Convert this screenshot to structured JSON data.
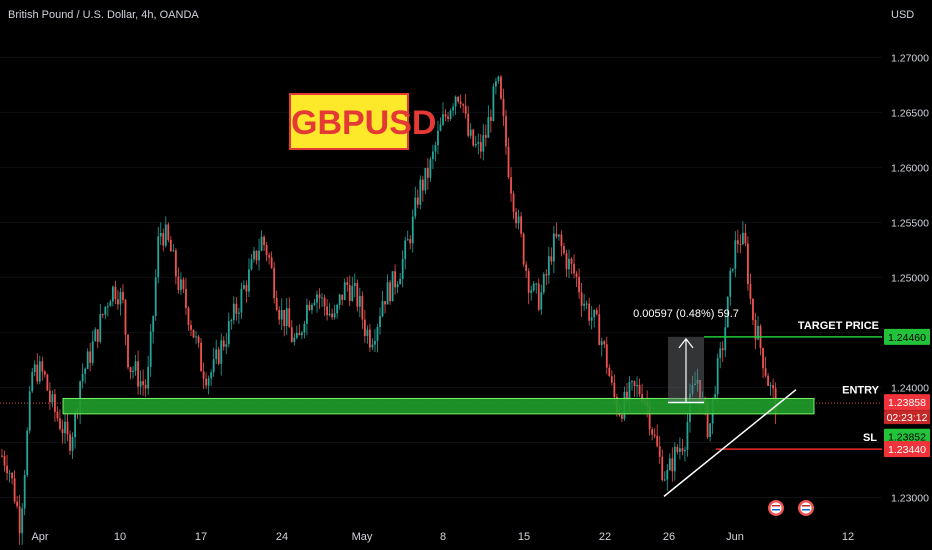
{
  "header": {
    "symbol_title": "British Pound / U.S. Dollar, 4h, OANDA",
    "currency": "USD"
  },
  "logo_text": "GBPUSD",
  "annotations": {
    "target_label": "TARGET PRICE",
    "entry_label": "ENTRY",
    "sl_label": "SL",
    "measure_text": "0.00597 (0.48%) 59.7"
  },
  "price_badges": {
    "target": "1.24460",
    "last": "1.23858",
    "countdown": "02:23:12",
    "entry": "1.23852",
    "sl": "1.23440"
  },
  "colors": {
    "up": "#26a69a",
    "down": "#ef5350",
    "zone_fill": "#1f9e2a",
    "zone_border": "#7cf06a",
    "target_line": "#21c93a",
    "sl_line": "#ef2b2b",
    "badge_green": "#22c33a",
    "badge_red": "#f0333a"
  },
  "chart_data": {
    "type": "candlestick",
    "title": "British Pound / U.S. Dollar, 4h, OANDA",
    "y_axis": {
      "label": "USD",
      "range": [
        1.2275,
        1.2743
      ],
      "ticks": [
        "1.27000",
        "1.26500",
        "1.26000",
        "1.25500",
        "1.25000",
        "1.24500",
        "1.24000",
        "1.23500",
        "1.23000"
      ]
    },
    "x_axis": {
      "ticks": [
        "Apr",
        "10",
        "17",
        "24",
        "May",
        "8",
        "15",
        "22",
        "26",
        "Jun",
        "12"
      ]
    },
    "levels": {
      "target": 1.2446,
      "entry": 1.23852,
      "sl": 1.2344,
      "last": 1.23858
    },
    "zone": {
      "from": 1.2376,
      "to": 1.239
    },
    "measure": {
      "from": 1.23863,
      "to": 1.2446,
      "change": "0.00597",
      "percent": "0.48%",
      "pips": "59.7"
    },
    "trendline": {
      "from": 1.2301,
      "to": 1.2398
    },
    "swing_path": [
      1.2338,
      1.2331,
      1.2305,
      1.2276,
      1.2345,
      1.2413,
      1.2416,
      1.241,
      1.2387,
      1.2375,
      1.2364,
      1.2349,
      1.2368,
      1.241,
      1.242,
      1.2438,
      1.2454,
      1.2472,
      1.2488,
      1.249,
      1.2475,
      1.242,
      1.2415,
      1.2405,
      1.24,
      1.2465,
      1.2543,
      1.2538,
      1.2522,
      1.2498,
      1.2482,
      1.2464,
      1.2443,
      1.242,
      1.2411,
      1.2416,
      1.2434,
      1.2446,
      1.246,
      1.2474,
      1.249,
      1.2503,
      1.252,
      1.2535,
      1.2522,
      1.2494,
      1.2468,
      1.2462,
      1.2445,
      1.2437,
      1.2468,
      1.2482,
      1.2488,
      1.2477,
      1.247,
      1.246,
      1.2481,
      1.2494,
      1.2487,
      1.2478,
      1.2455,
      1.2445,
      1.2458,
      1.2482,
      1.2488,
      1.2497,
      1.251,
      1.2528,
      1.255,
      1.258,
      1.2588,
      1.2603,
      1.2625,
      1.2642,
      1.2655,
      1.2668,
      1.2667,
      1.263,
      1.262,
      1.2615,
      1.2628,
      1.2655,
      1.2678,
      1.2637,
      1.2592,
      1.256,
      1.253,
      1.25,
      1.2485,
      1.248,
      1.25,
      1.2527,
      1.2535,
      1.252,
      1.251,
      1.25,
      1.2482,
      1.247,
      1.246,
      1.2448,
      1.2425,
      1.2395,
      1.238,
      1.2385,
      1.2395,
      1.2398,
      1.2397,
      1.2378,
      1.2352,
      1.233,
      1.2318,
      1.2335,
      1.2345,
      1.2355,
      1.239,
      1.241,
      1.238,
      1.236,
      1.2405,
      1.243,
      1.247,
      1.2522,
      1.2538,
      1.2525,
      1.247,
      1.2448,
      1.2425,
      1.24,
      1.2386
    ],
    "event_icons": 2
  }
}
